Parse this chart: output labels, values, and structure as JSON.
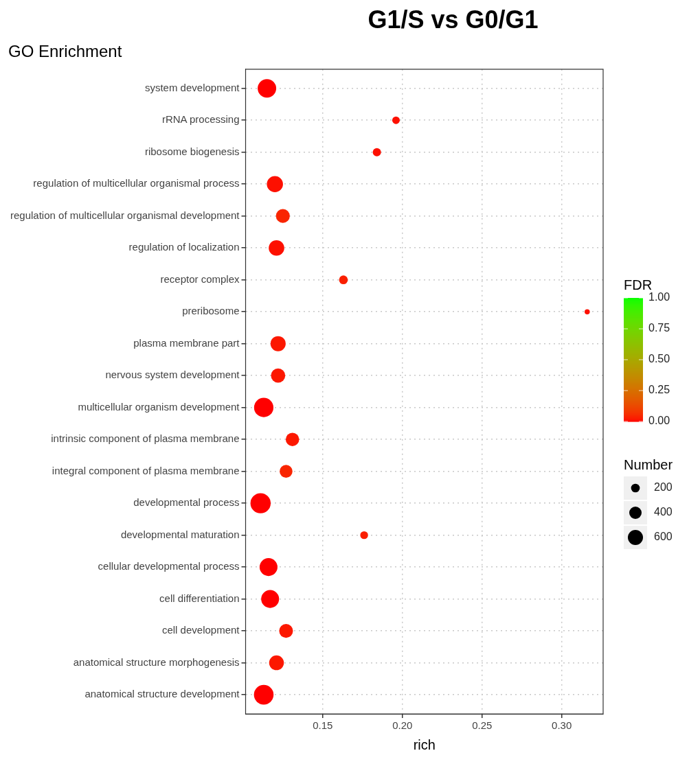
{
  "chart_data": {
    "type": "bubble",
    "title": "G1/S vs G0/G1",
    "subtitle": "GO Enrichment",
    "xlabel": "rich",
    "clabel": "FDR",
    "legend_title": "Number",
    "marker": "circle",
    "grid": true,
    "categories": [
      "system development",
      "rRNA processing",
      "ribosome biogenesis",
      "regulation of multicellular organismal process",
      "regulation of multicellular organismal development",
      "regulation of localization",
      "receptor complex",
      "preribosome",
      "plasma membrane part",
      "nervous system development",
      "multicellular organism development",
      "intrinsic component of plasma membrane",
      "integral component of plasma membrane",
      "developmental process",
      "developmental maturation",
      "cellular developmental process",
      "cell differentiation",
      "cell development",
      "anatomical structure morphogenesis",
      "anatomical structure development"
    ],
    "values": [
      0.115,
      0.196,
      0.184,
      0.12,
      0.125,
      0.121,
      0.163,
      0.316,
      0.122,
      0.122,
      0.113,
      0.131,
      0.127,
      0.111,
      0.176,
      0.116,
      0.117,
      0.127,
      0.121,
      0.113
    ],
    "sizes": [
      900,
      150,
      180,
      680,
      500,
      630,
      200,
      70,
      600,
      530,
      980,
      470,
      430,
      1070,
      160,
      840,
      840,
      500,
      570,
      1010
    ],
    "cvalues": [
      0.0,
      0.01,
      0.01,
      0.01,
      0.04,
      0.01,
      0.03,
      0.01,
      0.02,
      0.02,
      0.0,
      0.02,
      0.04,
      0.0,
      0.03,
      0.0,
      0.0,
      0.02,
      0.02,
      0.0
    ],
    "size_legend": [
      200,
      400,
      600
    ],
    "orientation": "horizontal",
    "xlim": [
      0.1016,
      0.326
    ],
    "xticks": [
      {
        "value": 0.15,
        "label": "0.15"
      },
      {
        "value": 0.2,
        "label": "0.20"
      },
      {
        "value": 0.25,
        "label": "0.25"
      },
      {
        "value": 0.3,
        "label": "0.30"
      }
    ],
    "clim": [
      0,
      1
    ],
    "cticks": [
      {
        "value": 0,
        "label": "0.00"
      },
      {
        "value": 0.25,
        "label": "0.25"
      },
      {
        "value": 0.5,
        "label": "0.50"
      },
      {
        "value": 0.75,
        "label": "0.75"
      },
      {
        "value": 1,
        "label": "1.00"
      }
    ]
  }
}
